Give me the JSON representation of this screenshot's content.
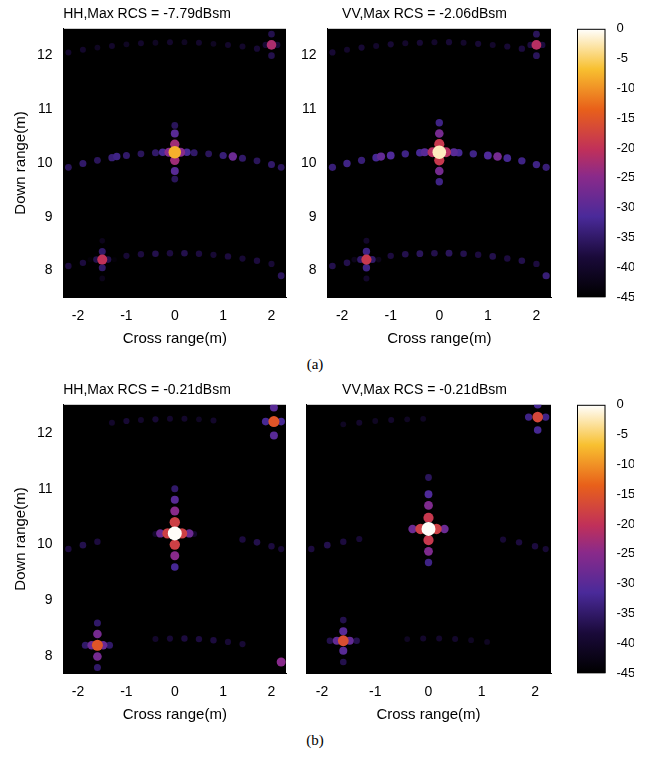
{
  "chart_data": [
    {
      "type": "heatmap",
      "title": "HH,Max RCS = -7.79dBsm",
      "x_label": "Cross range(m)",
      "y_label": "Down range(m)",
      "xlim": [
        -2.3,
        2.3
      ],
      "xticks": [
        -2,
        -1,
        0,
        1,
        2
      ],
      "ylim": [
        7.5,
        12.5
      ],
      "yticks": [
        8,
        9,
        10,
        11,
        12
      ],
      "grid": false,
      "points": [
        [
          -2.2,
          12.06,
          -40
        ],
        [
          -1.9,
          12.11,
          -40
        ],
        [
          -1.6,
          12.15,
          -41
        ],
        [
          -1.3,
          12.18,
          -40
        ],
        [
          -1.0,
          12.21,
          -41
        ],
        [
          -0.7,
          12.23,
          -40
        ],
        [
          -0.4,
          12.24,
          -41
        ],
        [
          -0.1,
          12.25,
          -40
        ],
        [
          0.2,
          12.25,
          -41
        ],
        [
          0.5,
          12.24,
          -40
        ],
        [
          0.8,
          12.22,
          -41
        ],
        [
          1.1,
          12.2,
          -40
        ],
        [
          1.4,
          12.17,
          -40
        ],
        [
          1.7,
          12.13,
          -39
        ],
        [
          -2.2,
          9.92,
          -36
        ],
        [
          -1.9,
          9.99,
          -35
        ],
        [
          -1.6,
          10.05,
          -36
        ],
        [
          -1.3,
          10.1,
          -34
        ],
        [
          -1.0,
          10.14,
          -35
        ],
        [
          -0.7,
          10.17,
          -36
        ],
        [
          -0.4,
          10.19,
          -35
        ],
        [
          0.4,
          10.19,
          -35
        ],
        [
          0.7,
          10.17,
          -36
        ],
        [
          1.0,
          10.14,
          -34
        ],
        [
          1.4,
          10.09,
          -35
        ],
        [
          1.7,
          10.04,
          -36
        ],
        [
          2.0,
          9.97,
          -35
        ],
        [
          2.2,
          9.92,
          -36
        ],
        [
          -2.2,
          8.08,
          -38
        ],
        [
          -1.9,
          8.14,
          -38
        ],
        [
          -1.0,
          8.27,
          -39
        ],
        [
          -0.7,
          8.3,
          -38
        ],
        [
          -0.4,
          8.31,
          -37
        ],
        [
          -0.1,
          8.32,
          -38
        ],
        [
          0.2,
          8.32,
          -37
        ],
        [
          0.5,
          8.31,
          -38
        ],
        [
          0.8,
          8.29,
          -39
        ],
        [
          1.1,
          8.26,
          -38
        ],
        [
          1.4,
          8.22,
          -39
        ],
        [
          1.7,
          8.18,
          -38
        ],
        [
          2.0,
          8.12,
          -39
        ],
        [
          2.2,
          7.9,
          -36
        ],
        [
          -1.2,
          10.12,
          -33
        ],
        [
          1.2,
          10.12,
          -28
        ],
        [
          -1.5,
          8.55,
          -42
        ],
        [
          -1.5,
          7.85,
          -42
        ],
        [
          -1.5,
          8.35,
          -35
        ],
        [
          -1.5,
          8.05,
          -35
        ],
        [
          -1.75,
          8.2,
          -44
        ],
        [
          -1.25,
          8.2,
          -44
        ],
        [
          -1.62,
          8.2,
          -37
        ],
        [
          -1.38,
          8.2,
          -37
        ],
        [
          -1.5,
          8.2,
          -20
        ],
        [
          2.0,
          12.4,
          -37
        ],
        [
          2.0,
          12.0,
          -37
        ],
        [
          1.88,
          12.2,
          -39
        ],
        [
          2.12,
          12.2,
          -39
        ],
        [
          2.0,
          12.2,
          -22
        ],
        [
          0,
          10.7,
          -36
        ],
        [
          0,
          9.7,
          -36
        ],
        [
          0,
          10.55,
          -30
        ],
        [
          0,
          9.85,
          -30
        ],
        [
          0,
          10.35,
          -23
        ],
        [
          0,
          10.05,
          -23
        ],
        [
          -0.25,
          10.2,
          -32
        ],
        [
          0.25,
          10.2,
          -32
        ],
        [
          -0.12,
          10.2,
          -25
        ],
        [
          0.12,
          10.2,
          -25
        ],
        [
          0,
          10.2,
          -7.79
        ]
      ]
    },
    {
      "type": "heatmap",
      "title": "VV,Max RCS = -2.06dBsm",
      "x_label": "Cross range(m)",
      "xlim": [
        -2.3,
        2.3
      ],
      "xticks": [
        -2,
        -1,
        0,
        1,
        2
      ],
      "ylim": [
        7.5,
        12.5
      ],
      "yticks": [
        8,
        9,
        10,
        11,
        12
      ],
      "grid": false,
      "points": [
        [
          -2.2,
          12.06,
          -39
        ],
        [
          -1.9,
          12.11,
          -40
        ],
        [
          -1.6,
          12.15,
          -39
        ],
        [
          -1.3,
          12.18,
          -40
        ],
        [
          -1.0,
          12.21,
          -39
        ],
        [
          -0.7,
          12.23,
          -40
        ],
        [
          -0.4,
          12.24,
          -39
        ],
        [
          -0.1,
          12.25,
          -40
        ],
        [
          0.2,
          12.25,
          -39
        ],
        [
          0.5,
          12.24,
          -40
        ],
        [
          0.8,
          12.22,
          -39
        ],
        [
          1.1,
          12.2,
          -40
        ],
        [
          1.4,
          12.17,
          -39
        ],
        [
          1.7,
          12.13,
          -38
        ],
        [
          -2.2,
          9.92,
          -34
        ],
        [
          -1.9,
          9.99,
          -33
        ],
        [
          -1.6,
          10.05,
          -34
        ],
        [
          -1.3,
          10.1,
          -32
        ],
        [
          -1.0,
          10.14,
          -31
        ],
        [
          -0.7,
          10.17,
          -33
        ],
        [
          -0.4,
          10.19,
          -32
        ],
        [
          0.4,
          10.19,
          -32
        ],
        [
          0.7,
          10.17,
          -33
        ],
        [
          1.0,
          10.14,
          -31
        ],
        [
          1.4,
          10.09,
          -32
        ],
        [
          1.7,
          10.04,
          -33
        ],
        [
          2.0,
          9.97,
          -33
        ],
        [
          2.2,
          9.92,
          -34
        ],
        [
          -2.2,
          8.08,
          -37
        ],
        [
          -1.9,
          8.14,
          -37
        ],
        [
          -1.0,
          8.27,
          -38
        ],
        [
          -0.7,
          8.3,
          -37
        ],
        [
          -0.4,
          8.31,
          -36
        ],
        [
          -0.1,
          8.32,
          -37
        ],
        [
          0.2,
          8.32,
          -36
        ],
        [
          0.5,
          8.31,
          -37
        ],
        [
          0.8,
          8.29,
          -38
        ],
        [
          1.1,
          8.26,
          -37
        ],
        [
          1.4,
          8.22,
          -38
        ],
        [
          1.7,
          8.18,
          -37
        ],
        [
          2.0,
          8.12,
          -38
        ],
        [
          2.2,
          7.9,
          -34
        ],
        [
          -1.2,
          10.12,
          -29
        ],
        [
          1.2,
          10.12,
          -27
        ],
        [
          -1.5,
          8.55,
          -40
        ],
        [
          -1.5,
          7.85,
          -40
        ],
        [
          -1.5,
          8.35,
          -33
        ],
        [
          -1.5,
          8.05,
          -33
        ],
        [
          -1.75,
          8.2,
          -42
        ],
        [
          -1.25,
          8.2,
          -42
        ],
        [
          -1.62,
          8.2,
          -35
        ],
        [
          -1.38,
          8.2,
          -35
        ],
        [
          -1.5,
          8.2,
          -19
        ],
        [
          2.0,
          12.4,
          -36
        ],
        [
          2.0,
          12.0,
          -36
        ],
        [
          1.88,
          12.2,
          -38
        ],
        [
          2.12,
          12.2,
          -38
        ],
        [
          2.0,
          12.2,
          -21
        ],
        [
          0,
          10.75,
          -33
        ],
        [
          0,
          9.65,
          -33
        ],
        [
          0,
          10.55,
          -27
        ],
        [
          0,
          9.85,
          -27
        ],
        [
          0,
          10.35,
          -19
        ],
        [
          0,
          10.05,
          -19
        ],
        [
          -0.3,
          10.2,
          -30
        ],
        [
          0.3,
          10.2,
          -30
        ],
        [
          -0.14,
          10.2,
          -21
        ],
        [
          0.14,
          10.2,
          -21
        ],
        [
          0,
          10.2,
          -2.06
        ]
      ]
    },
    {
      "type": "heatmap",
      "title": "HH,Max RCS = -0.21dBsm",
      "x_label": "Cross range(m)",
      "y_label": "Down range(m)",
      "xlim": [
        -2.3,
        2.3
      ],
      "xticks": [
        -2,
        -1,
        0,
        1,
        2
      ],
      "ylim": [
        7.7,
        12.5
      ],
      "yticks": [
        8,
        9,
        10,
        11,
        12
      ],
      "grid": false,
      "points": [
        [
          -1.3,
          12.18,
          -40
        ],
        [
          -1.0,
          12.21,
          -39
        ],
        [
          -0.7,
          12.23,
          -40
        ],
        [
          -0.4,
          12.24,
          -39
        ],
        [
          -0.1,
          12.25,
          -40
        ],
        [
          0.2,
          12.25,
          -40
        ],
        [
          0.5,
          12.24,
          -41
        ],
        [
          0.8,
          12.22,
          -40
        ],
        [
          -2.2,
          9.92,
          -38
        ],
        [
          -1.9,
          9.99,
          -37
        ],
        [
          -1.6,
          10.05,
          -38
        ],
        [
          1.4,
          10.09,
          -38
        ],
        [
          1.7,
          10.04,
          -37
        ],
        [
          2.0,
          9.97,
          -38
        ],
        [
          2.2,
          9.92,
          -39
        ],
        [
          -0.4,
          10.19,
          -40
        ],
        [
          0.4,
          10.19,
          -40
        ],
        [
          -0.4,
          8.31,
          -40
        ],
        [
          -0.1,
          8.32,
          -39
        ],
        [
          0.2,
          8.32,
          -38
        ],
        [
          0.5,
          8.31,
          -38
        ],
        [
          0.8,
          8.29,
          -38
        ],
        [
          1.1,
          8.26,
          -39
        ],
        [
          1.4,
          8.22,
          -39
        ],
        [
          2.2,
          7.9,
          -25
        ],
        [
          -1.6,
          8.6,
          -35
        ],
        [
          -1.6,
          7.8,
          -35
        ],
        [
          -1.6,
          8.4,
          -27
        ],
        [
          -1.6,
          8.0,
          -27
        ],
        [
          -1.85,
          8.2,
          -35
        ],
        [
          -1.35,
          8.2,
          -35
        ],
        [
          -1.72,
          8.2,
          -28
        ],
        [
          -1.48,
          8.2,
          -28
        ],
        [
          -1.6,
          8.2,
          -15
        ],
        [
          2.05,
          12.45,
          -30
        ],
        [
          2.05,
          11.95,
          -30
        ],
        [
          1.88,
          12.2,
          -32
        ],
        [
          2.2,
          12.2,
          -32
        ],
        [
          2.05,
          12.2,
          -15
        ],
        [
          0,
          11.0,
          -35
        ],
        [
          0,
          10.8,
          -30
        ],
        [
          0,
          10.6,
          -25
        ],
        [
          0,
          10.4,
          -18
        ],
        [
          0,
          10.0,
          -18
        ],
        [
          0,
          9.8,
          -25
        ],
        [
          0,
          9.6,
          -32
        ],
        [
          -0.3,
          10.2,
          -28
        ],
        [
          0.3,
          10.2,
          -28
        ],
        [
          -0.15,
          10.2,
          -18
        ],
        [
          0.15,
          10.2,
          -18
        ],
        [
          0,
          10.2,
          -0.21
        ]
      ]
    },
    {
      "type": "heatmap",
      "title": "VV,Max RCS = -0.21dBsm",
      "x_label": "Cross range(m)",
      "tick_labels": "x",
      "xlim": [
        -2.3,
        2.3
      ],
      "xticks": [
        -2,
        -1,
        0,
        1,
        2
      ],
      "ylim": [
        7.7,
        12.5
      ],
      "yticks": [
        8,
        9,
        10,
        11,
        12
      ],
      "grid": false,
      "points": [
        [
          -1.6,
          12.15,
          -41
        ],
        [
          -1.3,
          12.18,
          -40
        ],
        [
          -1.0,
          12.21,
          -41
        ],
        [
          -0.7,
          12.23,
          -40
        ],
        [
          -0.4,
          12.24,
          -41
        ],
        [
          -0.1,
          12.25,
          -41
        ],
        [
          -2.2,
          9.92,
          -38
        ],
        [
          -1.9,
          9.99,
          -37
        ],
        [
          -1.6,
          10.05,
          -38
        ],
        [
          -1.3,
          10.1,
          -39
        ],
        [
          1.4,
          10.09,
          -39
        ],
        [
          1.7,
          10.04,
          -38
        ],
        [
          2.0,
          9.97,
          -38
        ],
        [
          2.2,
          9.92,
          -39
        ],
        [
          -0.4,
          8.31,
          -41
        ],
        [
          -0.1,
          8.32,
          -40
        ],
        [
          0.2,
          8.32,
          -40
        ],
        [
          0.5,
          8.31,
          -40
        ],
        [
          0.8,
          8.29,
          -41
        ],
        [
          1.1,
          8.26,
          -41
        ],
        [
          -1.6,
          8.65,
          -37
        ],
        [
          -1.6,
          7.9,
          -37
        ],
        [
          -1.6,
          8.45,
          -30
        ],
        [
          -1.6,
          8.1,
          -30
        ],
        [
          -1.85,
          8.28,
          -37
        ],
        [
          -1.35,
          8.28,
          -37
        ],
        [
          -1.72,
          8.28,
          -29
        ],
        [
          -1.48,
          8.28,
          -29
        ],
        [
          -1.6,
          8.28,
          -16
        ],
        [
          2.05,
          12.5,
          -32
        ],
        [
          2.05,
          12.05,
          -32
        ],
        [
          1.88,
          12.28,
          -33
        ],
        [
          2.2,
          12.28,
          -33
        ],
        [
          2.05,
          12.28,
          -17
        ],
        [
          0,
          11.2,
          -36
        ],
        [
          0,
          10.9,
          -31
        ],
        [
          0,
          10.7,
          -26
        ],
        [
          0,
          10.48,
          -19
        ],
        [
          0,
          10.08,
          -19
        ],
        [
          0,
          9.88,
          -26
        ],
        [
          0,
          9.68,
          -33
        ],
        [
          -0.3,
          10.28,
          -28
        ],
        [
          0.3,
          10.28,
          -28
        ],
        [
          -0.15,
          10.28,
          -18
        ],
        [
          0.15,
          10.28,
          -18
        ],
        [
          0,
          10.28,
          -0.21
        ]
      ]
    }
  ],
  "figure": {
    "captions": [
      "(a)",
      "(b)"
    ],
    "colorbars": [
      {
        "zlim": [
          -45,
          0
        ],
        "zticks": [
          0,
          -5,
          -10,
          -15,
          -20,
          -25,
          -30,
          -35,
          -40,
          -45
        ]
      },
      {
        "zlim": [
          -45,
          0
        ],
        "zticks": [
          0,
          -5,
          -10,
          -15,
          -20,
          -25,
          -30,
          -35,
          -40,
          -45
        ]
      }
    ]
  }
}
